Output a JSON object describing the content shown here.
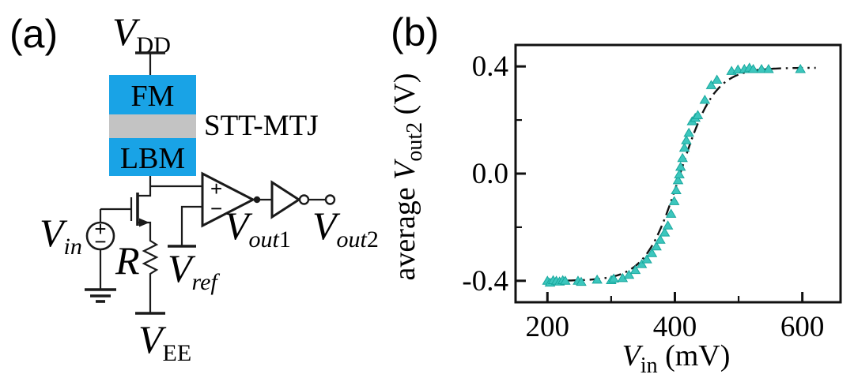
{
  "figure": {
    "panel_a_label": "(a)",
    "panel_b_label": "(b)"
  },
  "circuit": {
    "mtj": {
      "top_layer": "FM",
      "bottom_layer": "LBM",
      "device_label": "STT-MTJ"
    },
    "labels": {
      "vdd_main": "V",
      "vdd_sub": "DD",
      "vin_main": "V",
      "vin_sub": "in",
      "vee_main": "V",
      "vee_sub": "EE",
      "vref_main": "V",
      "vref_sub": "ref",
      "vout1_main": "V",
      "vout1_sub": "out",
      "vout1_num": "1",
      "vout2_main": "V",
      "vout2_sub": "out",
      "vout2_num": "2",
      "resistor": "R",
      "source_plus": "+",
      "source_minus": "−",
      "comp_plus": "+",
      "comp_minus": "−"
    },
    "colors": {
      "layer_blue": "#19a3e6",
      "spacer_gray": "#c3c3c3",
      "layer_text": "#0e2746",
      "wire_black": "#1a1a1a"
    }
  },
  "chart_data": {
    "type": "scatter",
    "title": "",
    "xlabel_main": "V",
    "xlabel_sub": "in",
    "xlabel_unit": " (mV)",
    "ylabel_prefix": "average ",
    "ylabel_main": "V",
    "ylabel_sub": "out2",
    "ylabel_unit": " (V)",
    "xlim": [
      150,
      660
    ],
    "ylim": [
      -0.48,
      0.48
    ],
    "xticks": [
      200,
      400,
      600
    ],
    "xminorticks": [
      300,
      500
    ],
    "yticks": [
      0.4,
      0.0,
      -0.4
    ],
    "yticklabels": [
      "0.4",
      "0.0",
      "-0.4"
    ],
    "yminorticks": [
      0.2,
      -0.2
    ],
    "grid": false,
    "legend": null,
    "marker": "triangle-up",
    "marker_color": "#3cc6bd",
    "marker_edge_color": "#17a79d",
    "fit_line": {
      "style": "dash-dot",
      "color": "#111111",
      "model": "sigmoid",
      "y_min": -0.4,
      "y_max": 0.395,
      "x_mid": 408,
      "slope_mV": 27,
      "x_start": 198,
      "x_end": 622
    },
    "points": [
      [
        200,
        -0.4
      ],
      [
        204,
        -0.407
      ],
      [
        209,
        -0.398
      ],
      [
        214,
        -0.4
      ],
      [
        219,
        -0.403
      ],
      [
        224,
        -0.398
      ],
      [
        228,
        -0.4
      ],
      [
        248,
        -0.4
      ],
      [
        253,
        -0.404
      ],
      [
        278,
        -0.396
      ],
      [
        300,
        -0.398
      ],
      [
        304,
        -0.392
      ],
      [
        318,
        -0.39
      ],
      [
        328,
        -0.378
      ],
      [
        338,
        -0.36
      ],
      [
        348,
        -0.338
      ],
      [
        356,
        -0.32
      ],
      [
        364,
        -0.297
      ],
      [
        371,
        -0.272
      ],
      [
        377,
        -0.247
      ],
      [
        384,
        -0.22
      ],
      [
        389,
        -0.194
      ],
      [
        394,
        -0.15
      ],
      [
        399,
        -0.103
      ],
      [
        402,
        -0.062
      ],
      [
        405,
        -0.025
      ],
      [
        407,
        -0.003
      ],
      [
        409,
        0.025
      ],
      [
        412,
        0.058
      ],
      [
        415,
        0.096
      ],
      [
        418,
        0.124
      ],
      [
        422,
        0.152
      ],
      [
        427,
        0.195
      ],
      [
        432,
        0.208
      ],
      [
        436,
        0.218
      ],
      [
        447,
        0.275
      ],
      [
        457,
        0.33
      ],
      [
        466,
        0.35
      ],
      [
        489,
        0.383
      ],
      [
        499,
        0.388
      ],
      [
        509,
        0.39
      ],
      [
        517,
        0.395
      ],
      [
        523,
        0.39
      ],
      [
        536,
        0.39
      ],
      [
        547,
        0.39
      ],
      [
        597,
        0.39
      ]
    ]
  }
}
